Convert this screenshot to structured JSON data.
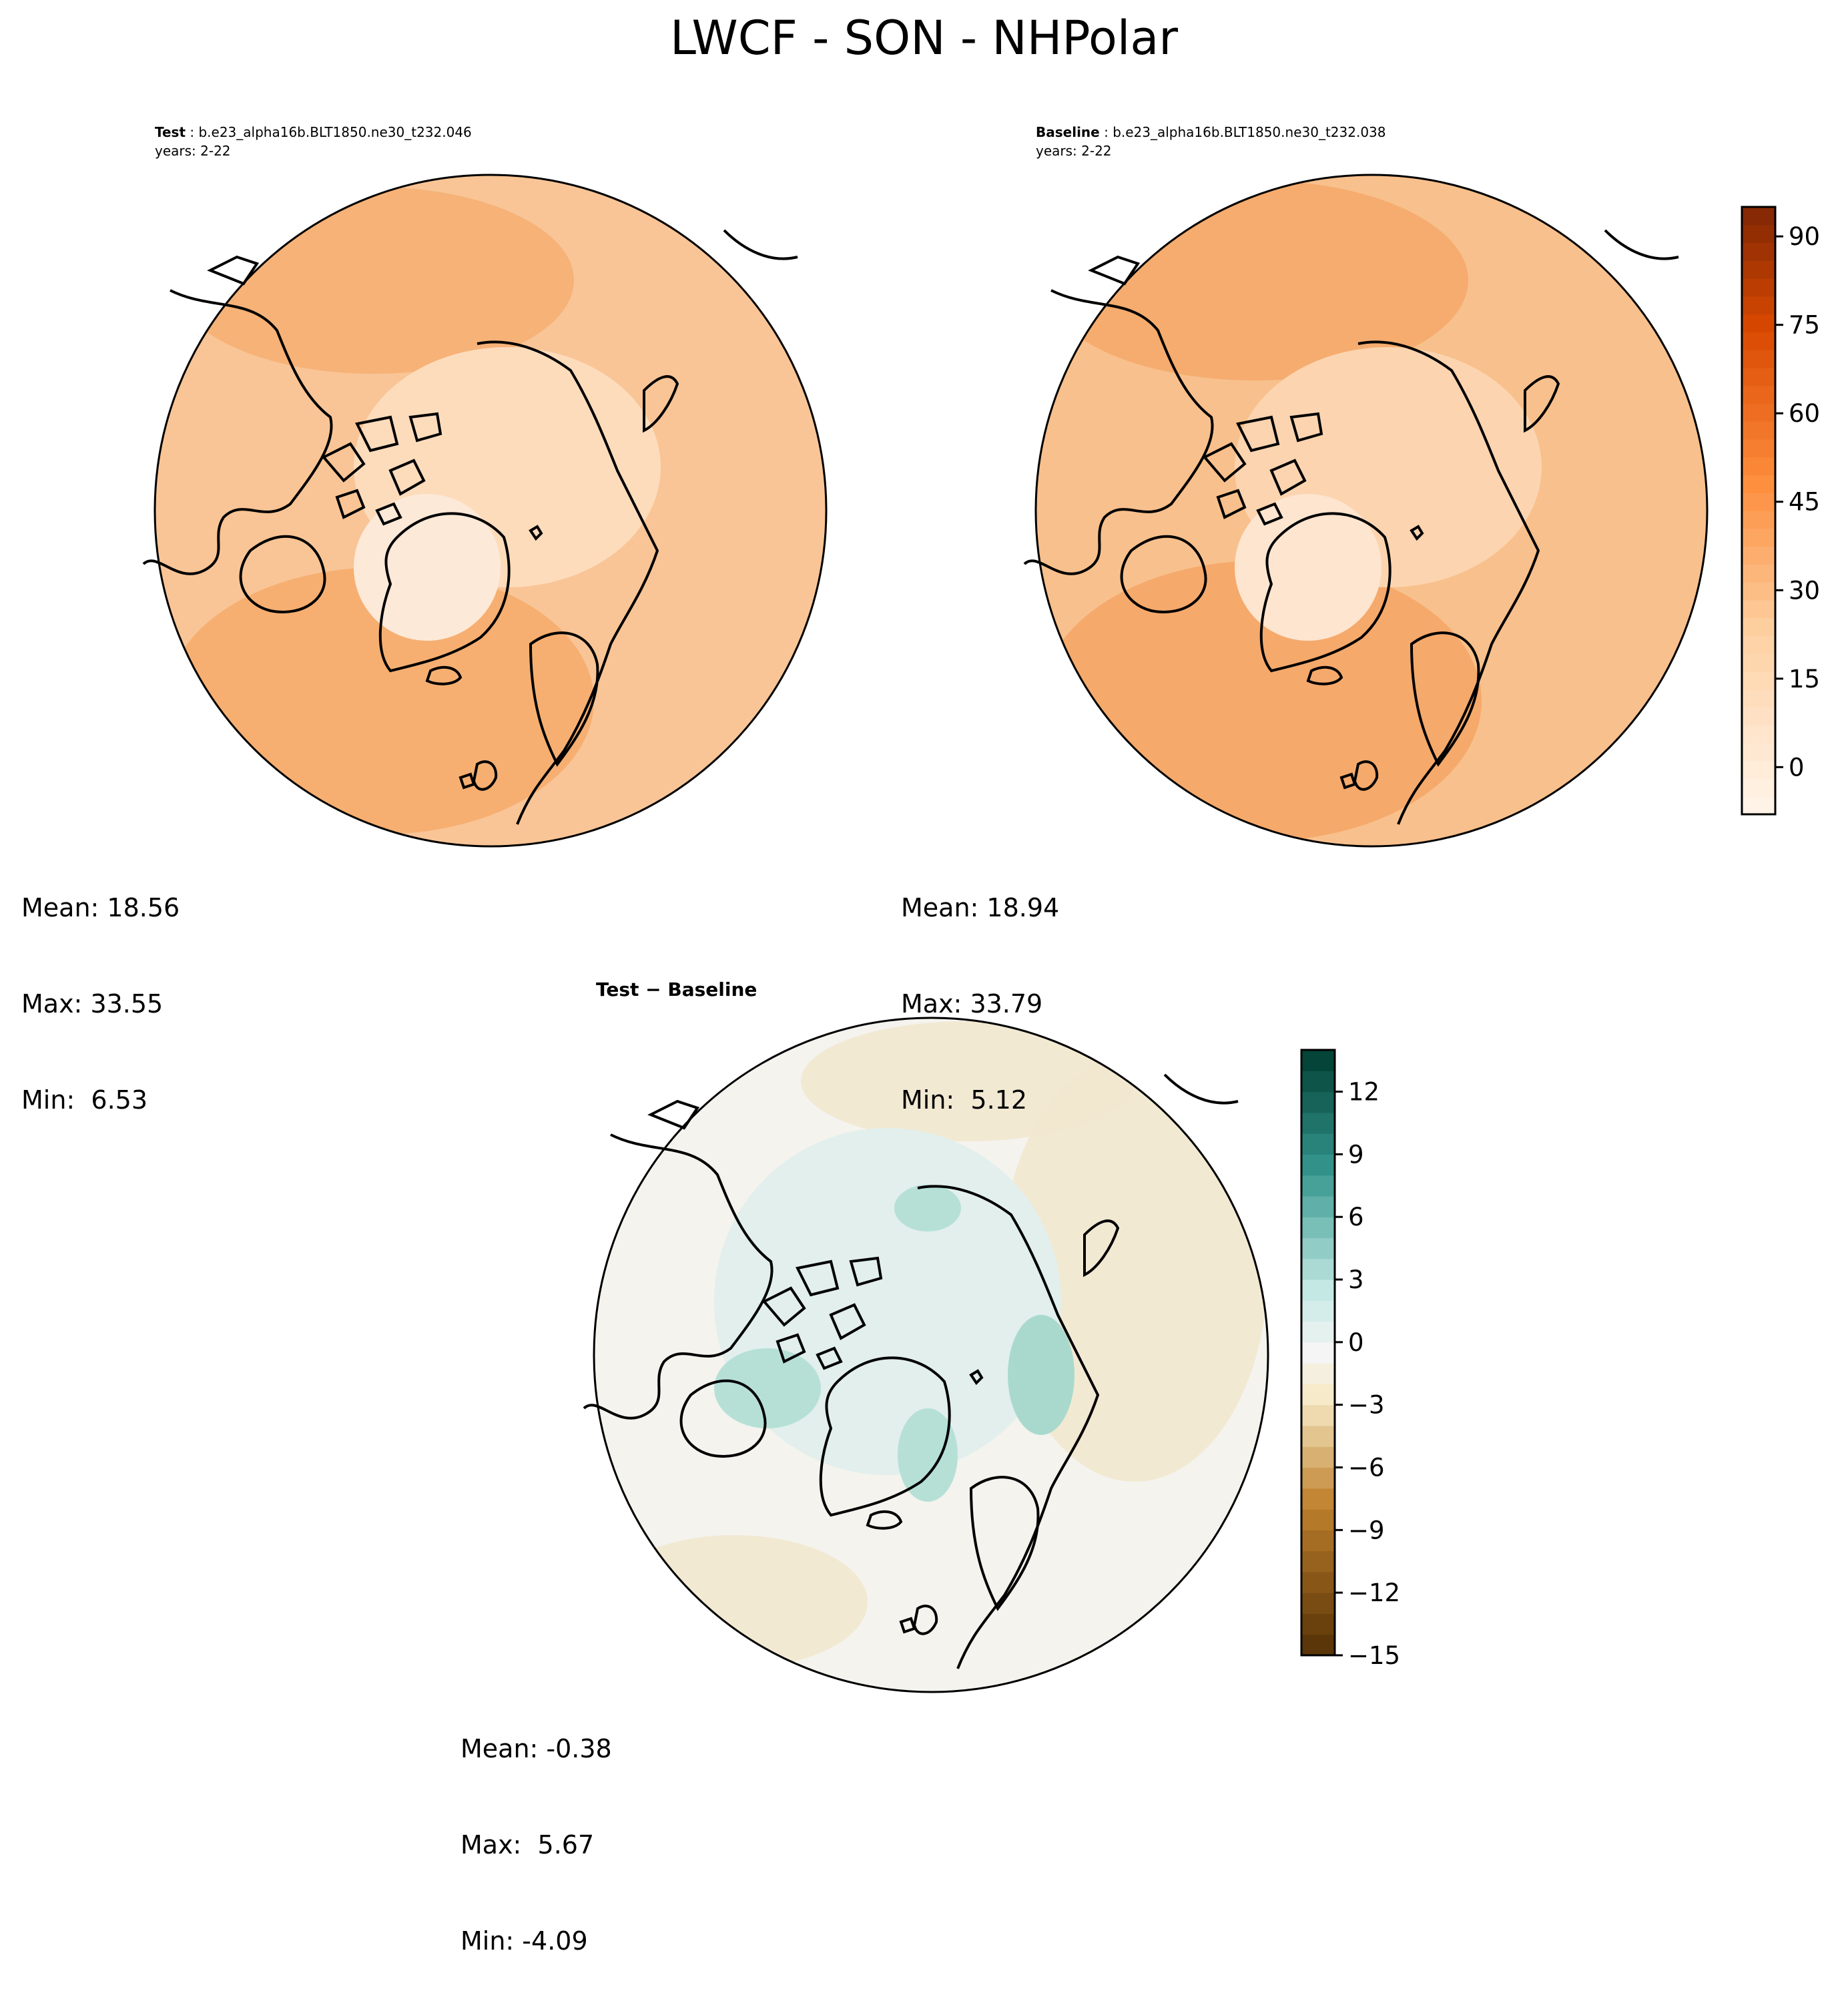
{
  "figure": {
    "title": "LWCF - SON - NHPolar"
  },
  "panels": {
    "test": {
      "label": "Test",
      "case": "b.e23_alpha16b.BLT1850.ne30_t232.046",
      "years": "years: 2-22",
      "stats": {
        "mean": "Mean: 18.56",
        "max": "Max: 33.55",
        "min": "Min:  6.53"
      }
    },
    "baseline": {
      "label": "Baseline",
      "case": "b.e23_alpha16b.BLT1850.ne30_t232.038",
      "years": "years: 2-22",
      "stats": {
        "mean": "Mean: 18.94",
        "max": "Max: 33.79",
        "min": "Min:  5.12"
      }
    },
    "difference": {
      "title": "Test − Baseline",
      "stats": {
        "mean": "Mean: -0.38",
        "max": "Max:  5.67",
        "min": "Min: -4.09"
      }
    }
  },
  "colors": {
    "ocean_test": "#f9c596",
    "ocean_base": "#f8c08c",
    "diff_bg": "#f4f3ee"
  },
  "chart_data": [
    {
      "type": "heatmap",
      "title": "Test : b.e23_alpha16b.BLT1850.ne30_t232.046",
      "projection": "north polar stereographic",
      "stats": {
        "mean": 18.56,
        "max": 33.55,
        "min": 6.53
      },
      "colorbar": {
        "range": [
          -8,
          95
        ],
        "ticks": [
          0,
          15,
          30,
          45,
          60,
          75,
          90
        ],
        "cmap": "Oranges"
      }
    },
    {
      "type": "heatmap",
      "title": "Baseline : b.e23_alpha16b.BLT1850.ne30_t232.038",
      "projection": "north polar stereographic",
      "stats": {
        "mean": 18.94,
        "max": 33.79,
        "min": 5.12
      },
      "colorbar": {
        "range": [
          -8,
          95
        ],
        "ticks": [
          0,
          15,
          30,
          45,
          60,
          75,
          90
        ],
        "cmap": "Oranges"
      }
    },
    {
      "type": "heatmap",
      "title": "Test − Baseline",
      "projection": "north polar stereographic",
      "stats": {
        "mean": -0.38,
        "max": 5.67,
        "min": -4.09
      },
      "colorbar": {
        "range": [
          -15,
          14
        ],
        "ticks": [
          -15,
          -12,
          -9,
          -6,
          -3,
          0,
          3,
          6,
          9,
          12
        ],
        "cmap": "BrBG"
      }
    }
  ]
}
